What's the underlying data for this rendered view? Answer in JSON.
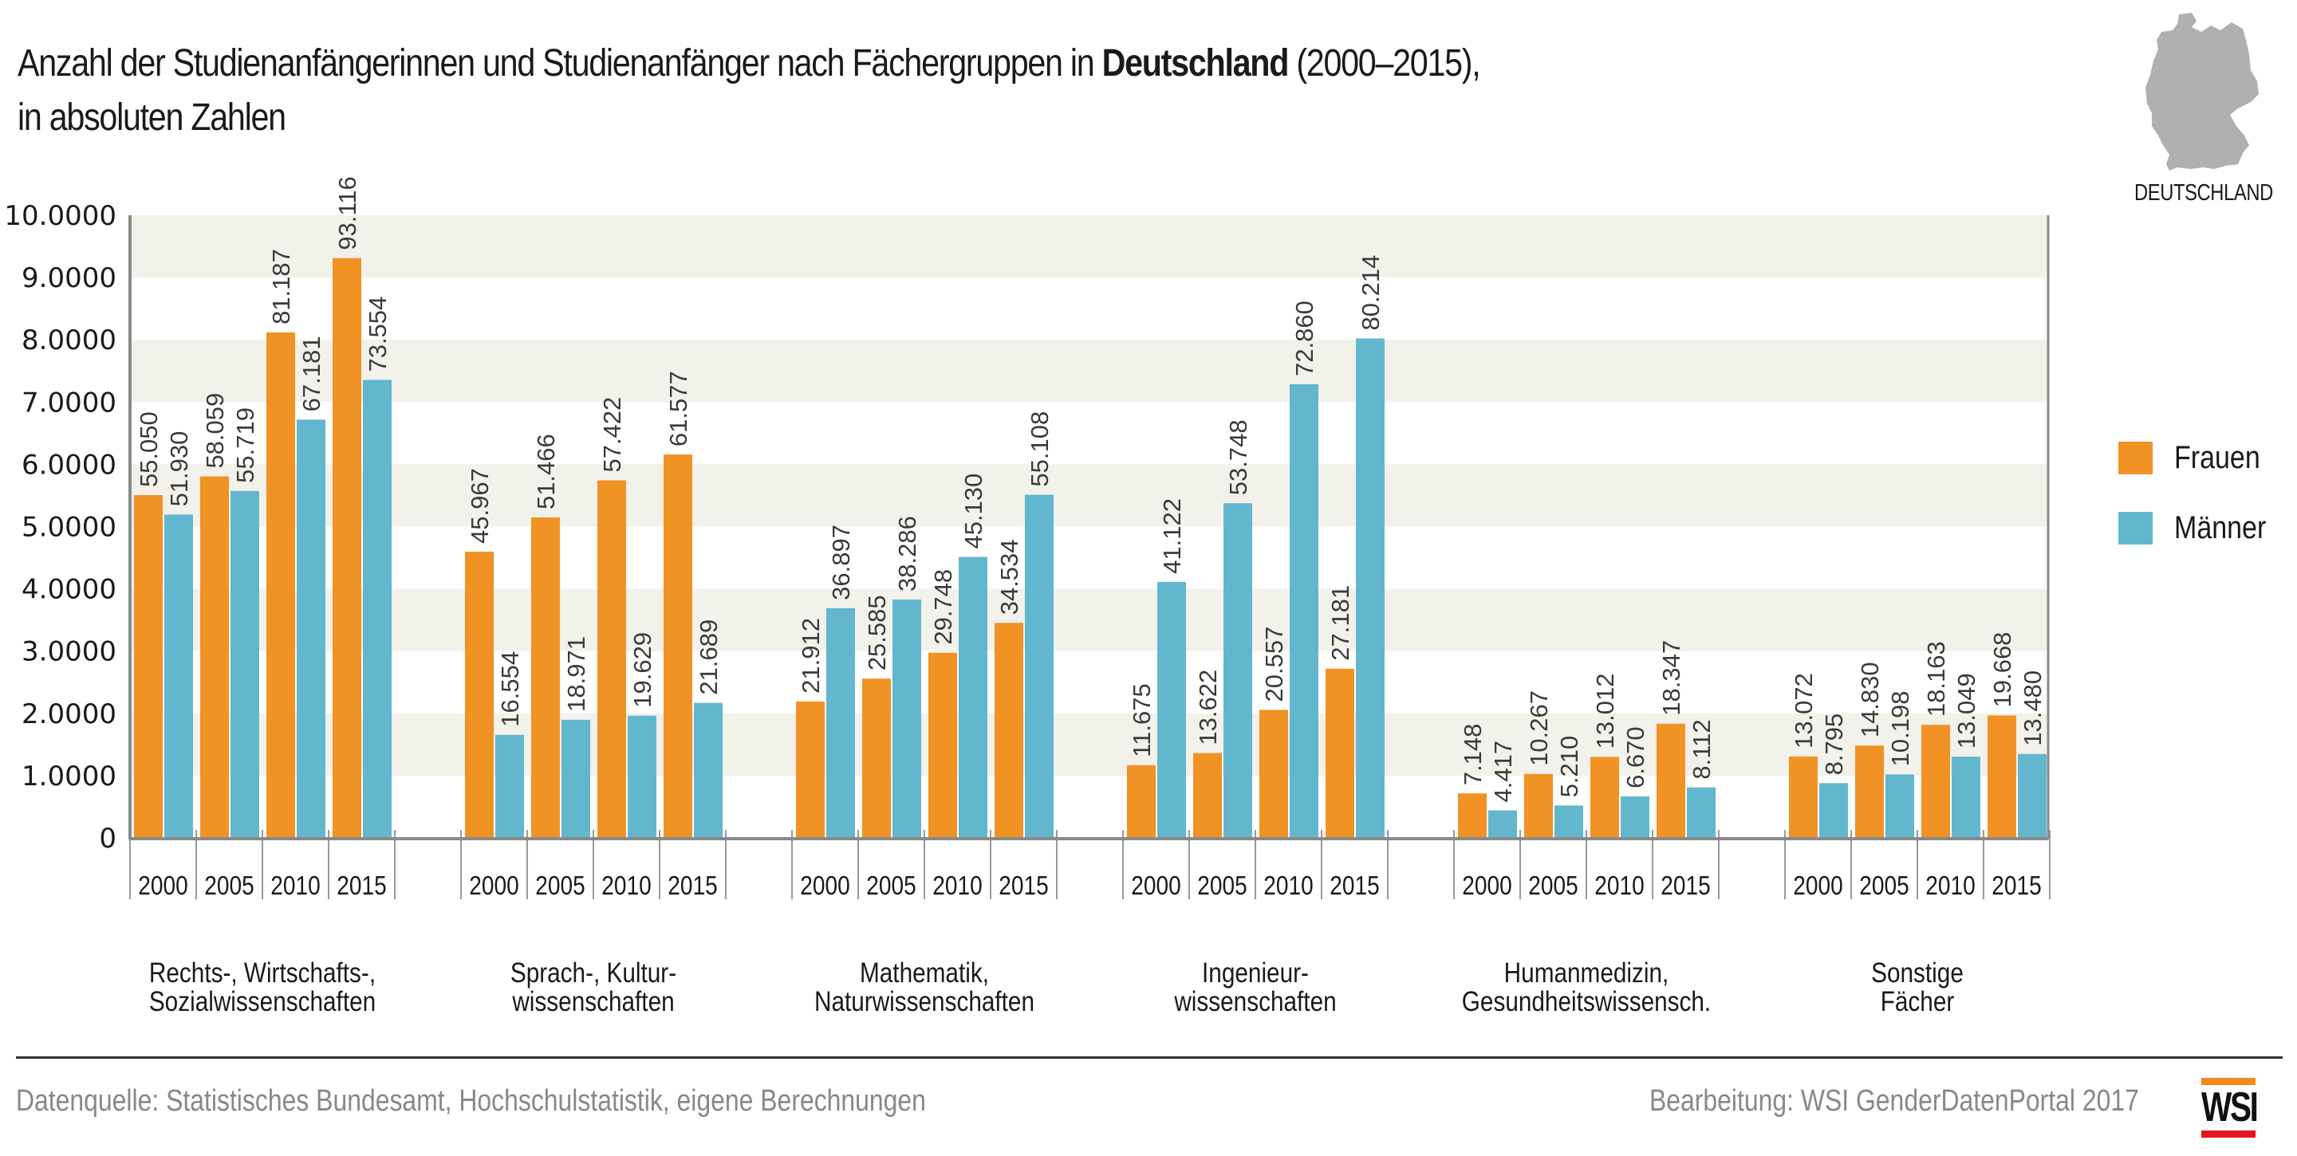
{
  "header": {
    "title_pre": "Anzahl der Studienanfängerinnen und Studienanfänger nach Fächergruppen in ",
    "title_bold": "Deutschland",
    "title_post": " (2000–2015),",
    "subtitle": "in absoluten Zahlen",
    "map_label": "DEUTSCHLAND",
    "map_icon": "germany-map-icon"
  },
  "legend": [
    {
      "label": "Frauen",
      "color": "#F19225"
    },
    {
      "label": "Männer",
      "color": "#62B7CE"
    }
  ],
  "footer": {
    "source": "Datenquelle:  Statistisches Bundesamt, Hochschulstatistik, eigene Berechnungen",
    "credit": "Bearbeitung: WSI GenderDatenPortal 2017",
    "logo_text": "WSI"
  },
  "chart_data": {
    "type": "bar",
    "title": "Anzahl der Studienanfängerinnen und Studienanfänger nach Fächergruppen in Deutschland (2000–2015), in absoluten Zahlen",
    "xlabel": "",
    "ylabel": "",
    "ylim": [
      0,
      100000
    ],
    "yticks": [
      0,
      10000,
      20000,
      30000,
      40000,
      50000,
      60000,
      70000,
      80000,
      90000,
      100000
    ],
    "ytick_labels": [
      "0",
      "1.0000",
      "2.0000",
      "3.0000",
      "4.0000",
      "5.0000",
      "6.0000",
      "7.0000",
      "8.0000",
      "9.0000",
      "10.0000"
    ],
    "grid": "alternating horizontal bands",
    "legend_position": "right",
    "years": [
      "2000",
      "2005",
      "2010",
      "2015"
    ],
    "groups": [
      {
        "label_lines": [
          "Rechts-, Wirtschafts-,",
          "Sozialwissenschaften"
        ],
        "frauen": [
          55050,
          58059,
          81187,
          93116
        ],
        "maenner": [
          51930,
          55719,
          67181,
          73554
        ],
        "frauen_labels": [
          "55.050",
          "58.059",
          "81.187",
          "93.116"
        ],
        "maenner_labels": [
          "51.930",
          "55.719",
          "67.181",
          "73.554"
        ]
      },
      {
        "label_lines": [
          "Sprach-, Kultur-",
          "wissenschaften"
        ],
        "frauen": [
          45967,
          51466,
          57422,
          61577
        ],
        "maenner": [
          16554,
          18971,
          19629,
          21689
        ],
        "frauen_labels": [
          "45.967",
          "51.466",
          "57.422",
          "61.577"
        ],
        "maenner_labels": [
          "16.554",
          "18.971",
          "19.629",
          "21.689"
        ]
      },
      {
        "label_lines": [
          "Mathematik,",
          "Naturwissenschaften"
        ],
        "frauen": [
          21912,
          25585,
          29748,
          34534
        ],
        "maenner": [
          36897,
          38286,
          45130,
          55108
        ],
        "frauen_labels": [
          "21.912",
          "25.585",
          "29.748",
          "34.534"
        ],
        "maenner_labels": [
          "36.897",
          "38.286",
          "45.130",
          "55.108"
        ]
      },
      {
        "label_lines": [
          "Ingenieur-",
          "wissenschaften"
        ],
        "frauen": [
          11675,
          13622,
          20557,
          27181
        ],
        "maenner": [
          41122,
          53748,
          72860,
          80214
        ],
        "frauen_labels": [
          "11.675",
          "13.622",
          "20.557",
          "27.181"
        ],
        "maenner_labels": [
          "41.122",
          "53.748",
          "72.860",
          "80.214"
        ]
      },
      {
        "label_lines": [
          "Humanmedizin,",
          "Gesundheitswissensch."
        ],
        "frauen": [
          7148,
          10267,
          13012,
          18347
        ],
        "maenner": [
          4417,
          5210,
          6670,
          8112
        ],
        "frauen_labels": [
          "7.148",
          "10.267",
          "13.012",
          "18.347"
        ],
        "maenner_labels": [
          "4.417",
          "5.210",
          "6.670",
          "8.112"
        ]
      },
      {
        "label_lines": [
          "Sonstige",
          "Fächer"
        ],
        "frauen": [
          13072,
          14830,
          18163,
          19668
        ],
        "maenner": [
          8795,
          10198,
          13049,
          13480
        ],
        "frauen_labels": [
          "13.072",
          "14.830",
          "18.163",
          "19.668"
        ],
        "maenner_labels": [
          "8.795",
          "10.198",
          "13.049",
          "13.480"
        ]
      }
    ],
    "series": [
      {
        "name": "Frauen",
        "color": "#F19225"
      },
      {
        "name": "Männer",
        "color": "#62B7CE"
      }
    ]
  }
}
